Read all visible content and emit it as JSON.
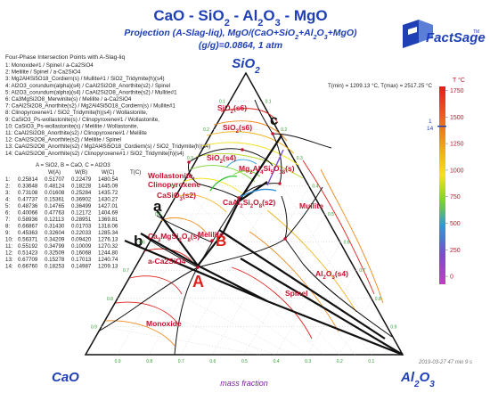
{
  "title": {
    "line1_parts": [
      "CaO - SiO",
      "2",
      " - Al",
      "2",
      "O",
      "3",
      " - MgO"
    ],
    "line2_parts": [
      "Projection (A-Slag-liq), MgO/(CaO+SiO",
      "2",
      "+Al",
      "2",
      "O",
      "3",
      "+MgO)"
    ],
    "line3": "(g/g)=0.0864, 1 atm"
  },
  "logo": {
    "text": "FactSage",
    "tm": "TM"
  },
  "apex": {
    "top": [
      "SiO",
      "2"
    ],
    "left": "CaO",
    "right": [
      "Al",
      "2",
      "O",
      "3"
    ]
  },
  "xaxis_label": "mass fraction",
  "temps": {
    "min_label": "T(min) = 1209.13 °C,  T(max) = 2517.25 °C"
  },
  "color_scale": {
    "title": "T °C",
    "ticks": [
      "1750",
      "1500",
      "1250",
      "1000",
      "750",
      "500",
      "250",
      "0"
    ],
    "marker_labels": [
      "1",
      "14"
    ]
  },
  "legend": {
    "heading": "Four-Phase Intersection Points with A-Slag-liq",
    "items": [
      "1:   Monoxide#1 / Spinel / a-Ca2SiO4",
      "2:   Melilite / Spinel / a-Ca2SiO4",
      "3:   Mg2Al4Si5O18_Cordiern(s) / Mullite#1 / SiO2_Tridymite(h)(s4)",
      "4:   Al2O3_corundum(alpha)(s4) / CaAl2Si2O8_Anorthite(s2) / Spinel",
      "5:   Al2O3_corundum(alpha)(s4) / CaAl2Si2O8_Anorthite(s2) / Mullite#1",
      "6:   Ca3MgSi2O8_Merwinite(s) / Melilite / a-Ca2SiO4",
      "7:   CaAl2Si2O8_Anorthite(s2) / Mg2Al4Si5O18_Cordiern(s) / Mullite#1",
      "8:   Clinopyroxene#1 / SiO2_Tridymite(h)(s4) / Wollastonite,",
      "9:   CaSiO3_Ps-wollastonite(s) / Clinopyroxene#1 / Wollastonite,",
      "10:  CaSiO3_Ps-wollastonite(s) / Melilite / Wollastonite,",
      "11:  CaAl2Si2O8_Anorthite(s2) / Clinopyroxene#1 / Melilite",
      "12:  CaAl2Si2O8_Anorthite(s2) / Melilite / Spinel",
      "13:  CaAl2Si2O8_Anorthite(s2) / Mg2Al4Si5O18_Cordiern(s) / SiO2_Tridymite(h)(s4)",
      "14:  CaAl2Si2O8_Anorthite(s2) / Clinopyroxene#1 / SiO2_Tridymite(h)(s4)"
    ]
  },
  "table": {
    "key": "A = SiO2,  B = CaO,  C = Al2O3",
    "headers": [
      "W(A)",
      "W(B)",
      "W(C)",
      "T(C)"
    ],
    "rows": [
      [
        "1:",
        "0.25814",
        "0.51707",
        "0.22479",
        "1480.54"
      ],
      [
        "2:",
        "0.33648",
        "0.48124",
        "0.18228",
        "1445.09"
      ],
      [
        "3:",
        "0.73108",
        "0.01608",
        "0.25284",
        "1435.72"
      ],
      [
        "4:",
        "0.47737",
        "0.15361",
        "0.36902",
        "1430.27"
      ],
      [
        "5:",
        "0.48736",
        "0.14765",
        "0.36499",
        "1427.01"
      ],
      [
        "6:",
        "0.40066",
        "0.47763",
        "0.12172",
        "1404.69"
      ],
      [
        "7:",
        "0.58936",
        "0.12113",
        "0.28951",
        "1369.81"
      ],
      [
        "8:",
        "0.66867",
        "0.31430",
        "0.01703",
        "1318.06"
      ],
      [
        "9:",
        "0.45363",
        "0.32604",
        "0.22033",
        "1285.34"
      ],
      [
        "10:",
        "0.56371",
        "0.34209",
        "0.09420",
        "1276.13"
      ],
      [
        "11:",
        "0.55192",
        "0.34799",
        "0.10009",
        "1270.32"
      ],
      [
        "12:",
        "0.51423",
        "0.32509",
        "0.16068",
        "1244.80"
      ],
      [
        "13:",
        "0.67709",
        "0.15278",
        "0.17013",
        "1240.74"
      ],
      [
        "14:",
        "0.66760",
        "0.18253",
        "0.14987",
        "1209.13"
      ]
    ]
  },
  "phase_labels": [
    "SiO2(s6)",
    "SiO2(s4)",
    "SiO2(s6)",
    "Mg2Al4Si5O18(s)",
    "Wollastonite,",
    "Clinopyroxene",
    "CaSiO3(s2)",
    "CaAl2Si2O8(s2)",
    "Mullite",
    "Ca3MgSi2O8(s)",
    "Melilite",
    "a-Ca2SiO4",
    "Spinel",
    "Al2O3(s4)",
    "Monoxide"
  ],
  "point_labels": [
    "A",
    "B",
    "a",
    "b",
    "c"
  ],
  "timestamp": "2019-03-27   47 min 9 s",
  "axis_ticks": [
    "0.9",
    "0.8",
    "0.7",
    "0.6",
    "0.5",
    "0.4",
    "0.3",
    "0.2",
    "0.1"
  ]
}
